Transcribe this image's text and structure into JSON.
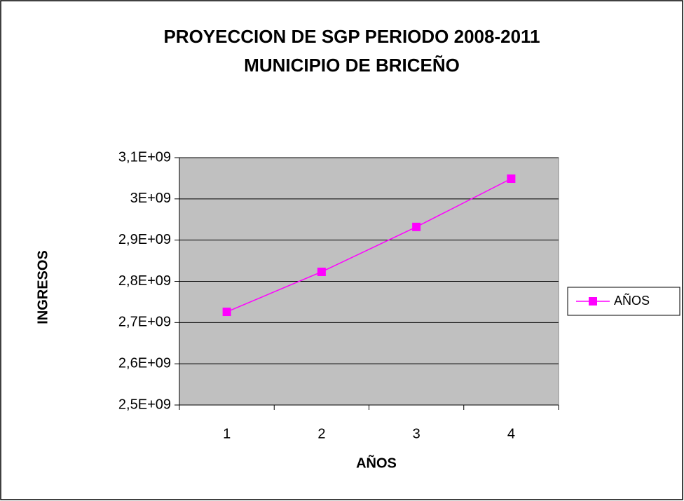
{
  "chart_data": {
    "type": "line",
    "title": [
      "PROYECCION DE SGP PERIODO 2008-2011",
      "MUNICIPIO DE BRICEÑO"
    ],
    "x_label": "AÑOS",
    "y_label": "INGRESOS",
    "categories": [
      "1",
      "2",
      "3",
      "4"
    ],
    "series": [
      {
        "name": "AÑOS",
        "color": "#ff00ff",
        "values": [
          2726000000,
          2823000000,
          2932000000,
          3049000000
        ]
      }
    ],
    "ylim": [
      2500000000,
      3100000000
    ],
    "yticks": [
      {
        "value": 2500000000,
        "label": "2,5E+09"
      },
      {
        "value": 2600000000,
        "label": "2,6E+09"
      },
      {
        "value": 2700000000,
        "label": "2,7E+09"
      },
      {
        "value": 2800000000,
        "label": "2,8E+09"
      },
      {
        "value": 2900000000,
        "label": "2,9E+09"
      },
      {
        "value": 3000000000,
        "label": "3E+09"
      },
      {
        "value": 3100000000,
        "label": "3,1E+09"
      }
    ],
    "grid": true,
    "plot_background": "#c0c0c0",
    "legend": "right"
  }
}
